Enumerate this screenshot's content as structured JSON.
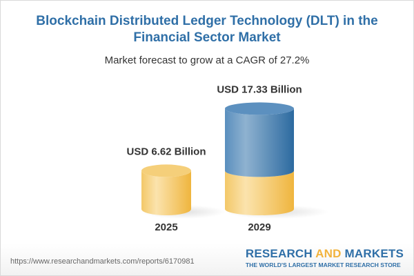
{
  "title": "Blockchain Distributed Ledger Technology (DLT) in the Financial Sector Market",
  "subtitle": "Market forecast to grow at a CAGR of 27.2%",
  "chart_data": {
    "type": "bar",
    "style": "3d-cylinder",
    "categories": [
      "2025",
      "2029"
    ],
    "values": [
      6.62,
      17.33
    ],
    "data_labels": [
      "USD 6.62 Billion",
      "USD 17.33 Billion"
    ],
    "unit": "USD Billion",
    "colors": {
      "base": "#f2c35a",
      "growth": "#3f7fb3"
    }
  },
  "footer": {
    "url": "https://www.researchandmarkets.com/reports/6170981",
    "logo": {
      "part1": "RESEARCH ",
      "part2": "AND",
      "part3": " MARKETS",
      "tagline": "THE WORLD'S LARGEST MARKET RESEARCH STORE"
    }
  }
}
